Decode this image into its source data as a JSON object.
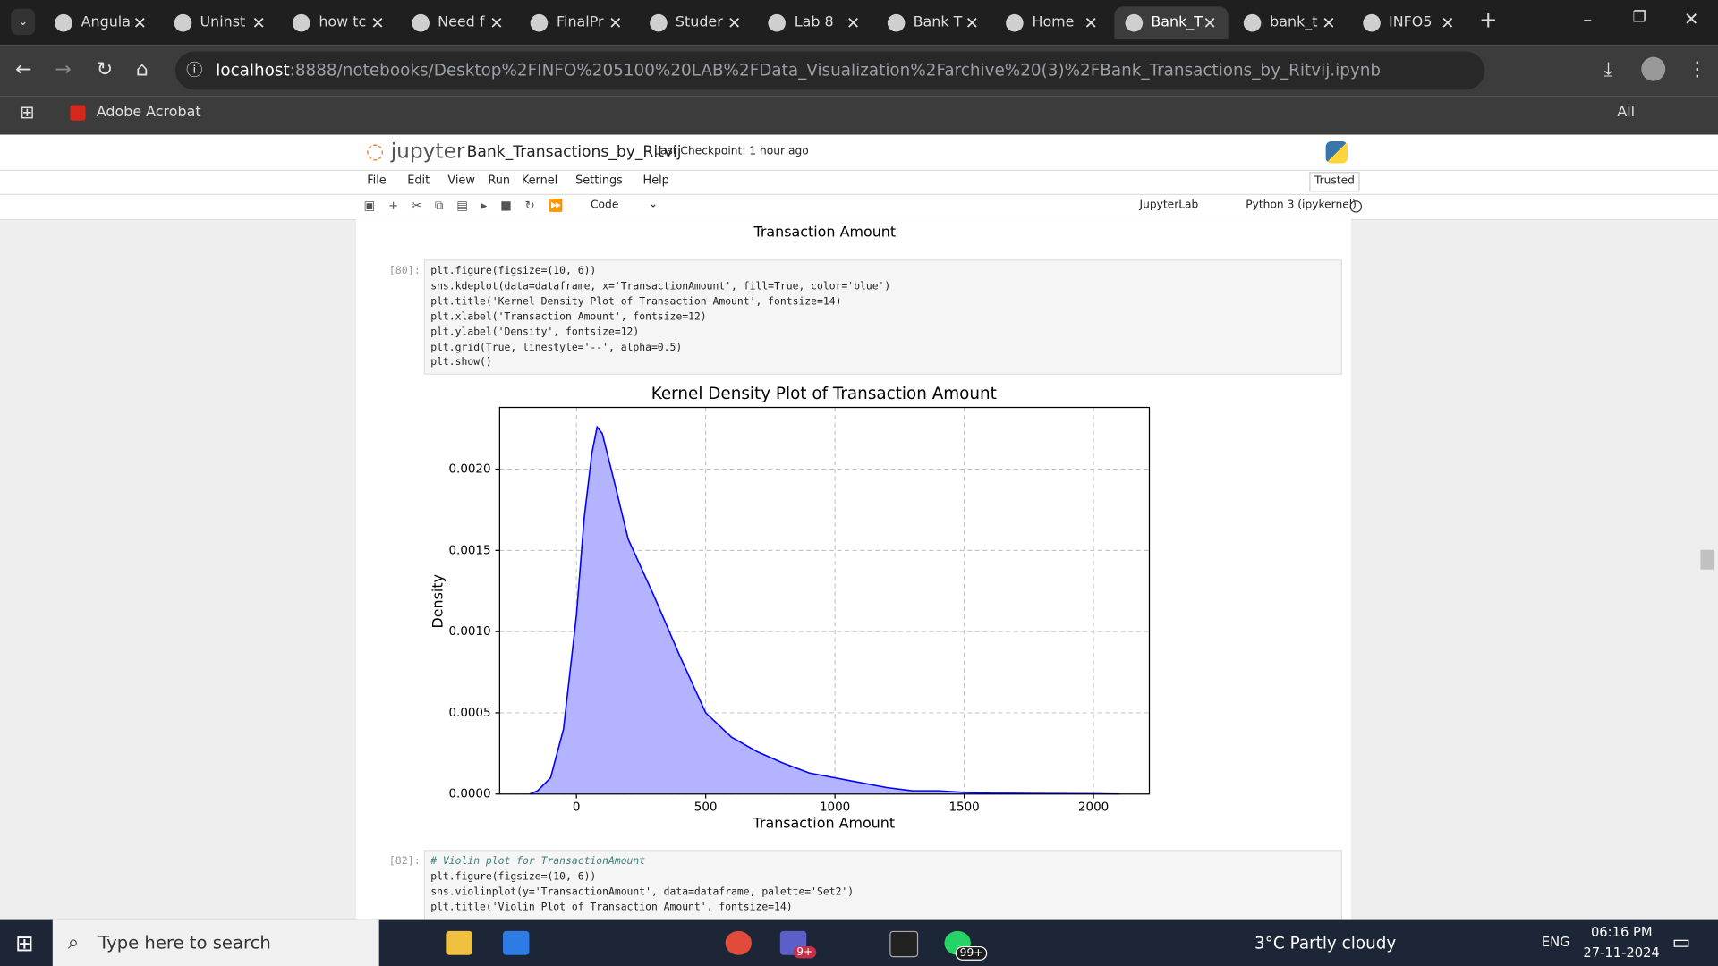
{
  "browser": {
    "tabs": [
      "Angula",
      "Uninst",
      "how tc",
      "Need f",
      "FinalPr",
      "Studer",
      "Lab 8",
      "Bank T",
      "Home",
      "Bank_T",
      "bank_t",
      "INFO5"
    ],
    "url_host": "localhost",
    "url_rest": ":8888/notebooks/Desktop%2FINFO%205100%20LAB%2FData_Visualization%2Farchive%20(3)%2FBank_Transactions_by_Ritvij.ipynb",
    "bookmarks": [
      "Adobe Acrobat"
    ],
    "all_bookmarks": "All Bookmarks"
  },
  "jupyter": {
    "logo": "jupyter",
    "notebook": "Bank_Transactions_by_Ritvij",
    "checkpoint": "Last Checkpoint: 1 hour ago",
    "menu": [
      "File",
      "Edit",
      "View",
      "Run",
      "Kernel",
      "Settings",
      "Help"
    ],
    "trusted": "Trusted",
    "cell_type": "Code",
    "jupyterlab": "JupyterLab",
    "kernel": "Python 3 (ipykernel)"
  },
  "previous_output": {
    "xlabel": "Transaction Amount"
  },
  "cells": [
    {
      "prompt": "[80]:",
      "lines": [
        "plt.figure(figsize=(10, 6))",
        "sns.kdeplot(data=dataframe, x='TransactionAmount', fill=True, color='blue')",
        "plt.title('Kernel Density Plot of Transaction Amount', fontsize=14)",
        "plt.xlabel('Transaction Amount', fontsize=12)",
        "plt.ylabel('Density', fontsize=12)",
        "plt.grid(True, linestyle='--', alpha=0.5)",
        "plt.show()"
      ]
    },
    {
      "prompt": "[82]:",
      "lines": [
        "# Violin plot for TransactionAmount",
        "plt.figure(figsize=(10, 6))",
        "sns.violinplot(y='TransactionAmount', data=dataframe, palette='Set2')",
        "plt.title('Violin Plot of Transaction Amount', fontsize=14)"
      ]
    }
  ],
  "chart_data": {
    "type": "area",
    "title": "Kernel Density Plot of Transaction Amount",
    "xlabel": "Transaction Amount",
    "ylabel": "Density",
    "x": [
      -180,
      -150,
      -100,
      -50,
      0,
      30,
      60,
      80,
      100,
      150,
      200,
      300,
      400,
      500,
      600,
      700,
      800,
      900,
      1000,
      1100,
      1200,
      1300,
      1400,
      1500,
      1600,
      1800,
      2000,
      2100
    ],
    "values": [
      0,
      2e-05,
      0.0001,
      0.0004,
      0.0011,
      0.0017,
      0.0021,
      0.00226,
      0.00222,
      0.0019,
      0.00157,
      0.00122,
      0.00085,
      0.0005,
      0.00035,
      0.00026,
      0.00019,
      0.00013,
      0.0001,
      7e-05,
      4e-05,
      2e-05,
      2e-05,
      1e-05,
      5e-06,
      3e-06,
      2e-06,
      0
    ],
    "color": "#0000ff",
    "fill_color": "#b3b3ff",
    "xlim": [
      -297,
      2216
    ],
    "ylim": [
      0,
      0.00238
    ],
    "xticks": [
      0,
      500,
      1000,
      1500,
      2000
    ],
    "yticks": [
      {
        "value": 0,
        "label": "0.0000"
      },
      {
        "value": 0.0005,
        "label": "0.0005"
      },
      {
        "value": 0.001,
        "label": "0.0010"
      },
      {
        "value": 0.0015,
        "label": "0.0015"
      },
      {
        "value": 0.002,
        "label": "0.0020"
      }
    ],
    "grid": true
  },
  "taskbar": {
    "search": "Type here to search",
    "weather": "3°C  Partly cloudy",
    "badge_teams": "9+",
    "badge_whatsapp": "99+",
    "lang": "ENG",
    "time": "06:16 PM",
    "date": "27-11-2024"
  }
}
